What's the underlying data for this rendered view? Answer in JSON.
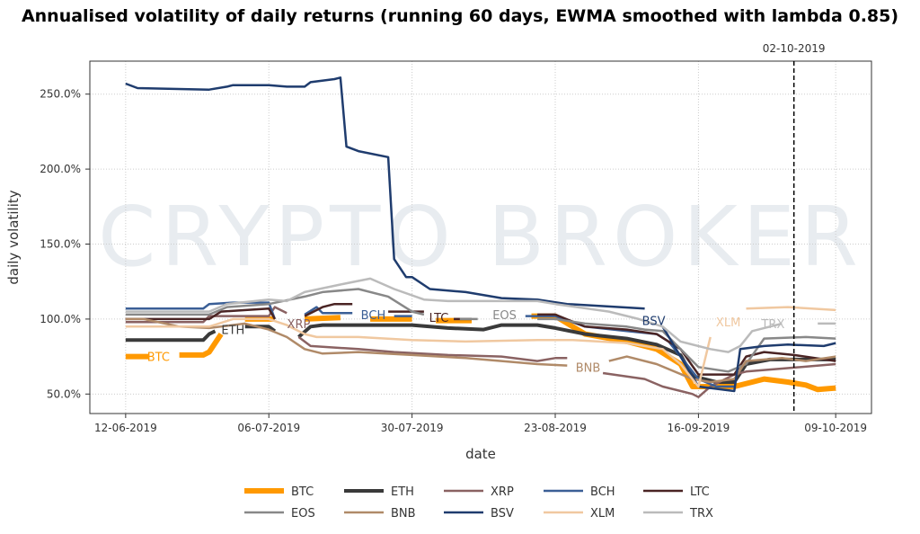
{
  "chart_data": {
    "type": "line",
    "title": "Annualised volatility of daily returns (running 60 days, EWMA smoothed with lambda 0.85)",
    "xlabel": "date",
    "ylabel": "daily volatility",
    "x_unit": "days since 12-06-2019",
    "xlim": [
      -6,
      125
    ],
    "ylim": [
      37,
      272
    ],
    "xticks": [
      {
        "v": 0,
        "label": "12-06-2019"
      },
      {
        "v": 24,
        "label": "06-07-2019"
      },
      {
        "v": 48,
        "label": "30-07-2019"
      },
      {
        "v": 72,
        "label": "23-08-2019"
      },
      {
        "v": 96,
        "label": "16-09-2019"
      },
      {
        "v": 119,
        "label": "09-10-2019"
      }
    ],
    "yticks": [
      {
        "v": 50,
        "label": "50.0%"
      },
      {
        "v": 100,
        "label": "100.0%"
      },
      {
        "v": 150,
        "label": "150.0%"
      },
      {
        "v": 200,
        "label": "200.0%"
      },
      {
        "v": 250,
        "label": "250.0%"
      }
    ],
    "grid": true,
    "vline": {
      "x": 112,
      "label": "02-10-2019"
    },
    "watermark": "CRYPTO BROKER",
    "legend_position": "bottom",
    "series": [
      {
        "name": "BTC",
        "color": "#ff9900",
        "width": 6,
        "label_at": [
          5.5,
          75
        ],
        "points": [
          [
            0,
            75
          ],
          [
            4,
            75
          ],
          null,
          [
            9,
            76
          ],
          [
            13,
            76
          ],
          [
            14,
            78
          ],
          [
            16,
            90
          ],
          null,
          [
            20,
            100
          ],
          [
            25,
            100
          ],
          null,
          [
            30,
            100
          ],
          [
            36,
            101
          ],
          null,
          [
            41,
            100
          ],
          [
            48,
            100
          ],
          null,
          [
            52,
            99
          ],
          [
            58,
            99
          ],
          null,
          [
            68,
            102
          ],
          [
            72,
            102
          ],
          [
            77,
            90
          ],
          [
            84,
            85
          ],
          [
            89,
            80
          ],
          [
            93,
            70
          ],
          [
            95,
            55
          ],
          [
            102,
            55
          ],
          [
            105,
            58
          ],
          [
            107,
            60
          ],
          [
            111,
            58
          ],
          [
            114,
            56
          ],
          [
            116,
            53
          ],
          [
            119,
            54
          ]
        ]
      },
      {
        "name": "ETH",
        "color": "#3a3a3a",
        "width": 4,
        "label_at": [
          18,
          93
        ],
        "points": [
          [
            0,
            86
          ],
          [
            13,
            86
          ],
          [
            14,
            90
          ],
          [
            15,
            92
          ],
          null,
          [
            20,
            95
          ],
          [
            24,
            95
          ],
          [
            25,
            92
          ],
          null,
          [
            29,
            88
          ],
          [
            31,
            95
          ],
          [
            33,
            96
          ],
          [
            48,
            96
          ],
          [
            54,
            94
          ],
          [
            60,
            93
          ],
          [
            63,
            96
          ],
          [
            69,
            96
          ],
          [
            72,
            94
          ],
          [
            77,
            90
          ],
          [
            84,
            87
          ],
          [
            89,
            83
          ],
          [
            93,
            76
          ],
          [
            95,
            62
          ],
          [
            99,
            58
          ],
          [
            102,
            58
          ],
          [
            104,
            70
          ],
          [
            108,
            73
          ],
          [
            119,
            73
          ]
        ]
      },
      {
        "name": "XRP",
        "color": "#8a6262",
        "width": 2.5,
        "label_at": [
          29,
          97
        ],
        "points": [
          [
            0,
            98
          ],
          [
            13,
            98
          ],
          [
            14,
            102
          ],
          [
            24,
            102
          ],
          [
            25,
            108
          ],
          [
            27,
            104
          ],
          null,
          [
            29,
            88
          ],
          [
            31,
            82
          ],
          [
            39,
            80
          ],
          [
            45,
            78
          ],
          [
            54,
            76
          ],
          [
            63,
            75
          ],
          [
            69,
            72
          ],
          [
            72,
            74
          ],
          [
            74,
            74
          ],
          null,
          [
            80,
            64
          ],
          [
            87,
            60
          ],
          [
            90,
            55
          ],
          [
            95,
            50
          ],
          [
            96,
            48
          ],
          [
            98,
            55
          ],
          [
            102,
            63
          ],
          [
            104,
            65
          ],
          [
            110,
            67
          ],
          [
            119,
            70
          ]
        ]
      },
      {
        "name": "BCH",
        "color": "#3b5f96",
        "width": 2.5,
        "label_at": [
          41.5,
          103
        ],
        "points": [
          [
            0,
            107
          ],
          [
            13,
            107
          ],
          [
            14,
            110
          ],
          [
            18,
            111
          ],
          [
            24,
            111
          ],
          [
            25,
            100
          ],
          null,
          [
            30,
            103
          ],
          [
            32,
            108
          ],
          [
            33,
            104
          ],
          [
            38,
            104
          ],
          null,
          [
            45,
            102
          ],
          [
            48,
            102
          ],
          null,
          [
            55,
            100
          ],
          [
            58,
            100
          ],
          null,
          [
            67,
            102
          ],
          [
            72,
            102
          ],
          [
            77,
            95
          ],
          [
            84,
            92
          ],
          [
            89,
            90
          ],
          [
            91,
            85
          ],
          [
            93,
            75
          ],
          [
            96,
            60
          ],
          [
            99,
            55
          ],
          [
            102,
            55
          ]
        ]
      },
      {
        "name": "LTC",
        "color": "#4a2424",
        "width": 2.5,
        "label_at": [
          52.5,
          101
        ],
        "points": [
          [
            0,
            100
          ],
          [
            14,
            100
          ],
          [
            16,
            105
          ],
          [
            24,
            107
          ],
          [
            25,
            100
          ],
          null,
          [
            30,
            102
          ],
          [
            33,
            108
          ],
          [
            35,
            110
          ],
          [
            38,
            110
          ],
          null,
          [
            44,
            105
          ],
          [
            50,
            105
          ],
          null,
          [
            55,
            100
          ],
          [
            58,
            100
          ],
          null,
          [
            69,
            103
          ],
          [
            72,
            103
          ],
          [
            77,
            95
          ],
          [
            84,
            93
          ],
          [
            89,
            90
          ],
          [
            93,
            80
          ],
          [
            96,
            63
          ],
          [
            102,
            63
          ],
          [
            104,
            75
          ],
          [
            107,
            78
          ],
          [
            112,
            76
          ],
          [
            119,
            72
          ]
        ]
      },
      {
        "name": "EOS",
        "color": "#888888",
        "width": 2.5,
        "label_at": [
          63.5,
          103
        ],
        "points": [
          [
            0,
            103
          ],
          [
            14,
            103
          ],
          [
            17,
            108
          ],
          [
            24,
            110
          ],
          [
            30,
            115
          ],
          [
            33,
            118
          ],
          [
            39,
            120
          ],
          [
            44,
            115
          ],
          [
            48,
            105
          ],
          [
            50,
            103
          ],
          null,
          [
            56,
            100
          ],
          [
            59,
            100
          ],
          null,
          [
            69,
            100
          ],
          [
            72,
            100
          ],
          [
            77,
            97
          ],
          [
            84,
            95
          ],
          [
            87,
            93
          ],
          [
            90,
            92
          ],
          [
            93,
            80
          ],
          [
            96,
            68
          ],
          [
            101,
            65
          ],
          [
            104,
            70
          ],
          [
            107,
            87
          ],
          [
            114,
            88
          ],
          [
            119,
            87
          ]
        ]
      },
      {
        "name": "BNB",
        "color": "#b08a68",
        "width": 2.5,
        "label_at": [
          77.5,
          68
        ],
        "points": [
          [
            0,
            100
          ],
          [
            3,
            100
          ],
          [
            9,
            95
          ],
          [
            14,
            94
          ],
          [
            20,
            97
          ],
          [
            24,
            93
          ],
          [
            27,
            88
          ],
          [
            30,
            80
          ],
          [
            33,
            77
          ],
          [
            39,
            78
          ],
          [
            48,
            76
          ],
          [
            57,
            74
          ],
          [
            63,
            72
          ],
          [
            69,
            70
          ],
          [
            74,
            69
          ],
          null,
          [
            81,
            72
          ],
          [
            84,
            75
          ],
          [
            89,
            70
          ],
          [
            95,
            60
          ],
          [
            98,
            58
          ],
          [
            102,
            60
          ],
          [
            104,
            72
          ],
          [
            110,
            74
          ],
          [
            114,
            72
          ],
          [
            119,
            75
          ]
        ]
      },
      {
        "name": "BSV",
        "color": "#1f3c6e",
        "width": 2.5,
        "label_at": [
          88.5,
          99
        ],
        "points": [
          [
            0,
            257
          ],
          [
            2,
            254
          ],
          [
            14,
            253
          ],
          [
            17,
            255
          ],
          [
            18,
            256
          ],
          [
            24,
            256
          ],
          [
            27,
            255
          ],
          [
            30,
            255
          ],
          [
            31,
            258
          ],
          [
            35,
            260
          ],
          [
            36,
            261
          ],
          [
            37,
            215
          ],
          [
            39,
            212
          ],
          [
            44,
            208
          ],
          [
            45,
            140
          ],
          [
            47,
            128
          ],
          [
            48,
            128
          ],
          [
            51,
            120
          ],
          [
            57,
            118
          ],
          [
            63,
            114
          ],
          [
            69,
            113
          ],
          [
            74,
            110
          ],
          [
            87,
            107
          ],
          null,
          [
            90,
            95
          ],
          [
            96,
            55
          ],
          [
            102,
            52
          ],
          [
            103,
            80
          ],
          [
            107,
            82
          ],
          [
            111,
            83
          ],
          [
            117,
            82
          ],
          [
            119,
            84
          ]
        ]
      },
      {
        "name": "XLM",
        "color": "#f0c8a0",
        "width": 2.5,
        "label_at": [
          101,
          98
        ],
        "points": [
          [
            0,
            95
          ],
          [
            14,
            95
          ],
          [
            18,
            100
          ],
          [
            24,
            100
          ],
          [
            27,
            96
          ],
          [
            30,
            90
          ],
          [
            32,
            88
          ],
          [
            39,
            88
          ],
          [
            48,
            86
          ],
          [
            57,
            85
          ],
          [
            69,
            86
          ],
          [
            75,
            86
          ],
          [
            84,
            84
          ],
          [
            90,
            80
          ],
          [
            93,
            70
          ],
          [
            96,
            55
          ],
          [
            98,
            88
          ],
          null,
          [
            104,
            107
          ],
          [
            111,
            108
          ],
          [
            119,
            106
          ]
        ]
      },
      {
        "name": "TRX",
        "color": "#bbbbbb",
        "width": 2.5,
        "label_at": [
          108.5,
          97
        ],
        "points": [
          [
            0,
            105
          ],
          [
            14,
            105
          ],
          [
            17,
            110
          ],
          [
            24,
            113
          ],
          [
            27,
            112
          ],
          [
            30,
            118
          ],
          [
            36,
            123
          ],
          [
            41,
            127
          ],
          [
            45,
            120
          ],
          [
            50,
            113
          ],
          [
            54,
            112
          ],
          [
            69,
            112
          ],
          [
            72,
            110
          ],
          [
            81,
            105
          ],
          [
            86,
            100
          ],
          [
            90,
            95
          ],
          [
            93,
            85
          ],
          [
            98,
            80
          ],
          [
            101,
            78
          ],
          [
            103,
            82
          ],
          [
            105,
            92
          ],
          [
            110,
            97
          ],
          null,
          [
            116,
            97
          ],
          [
            119,
            97
          ]
        ]
      }
    ]
  }
}
